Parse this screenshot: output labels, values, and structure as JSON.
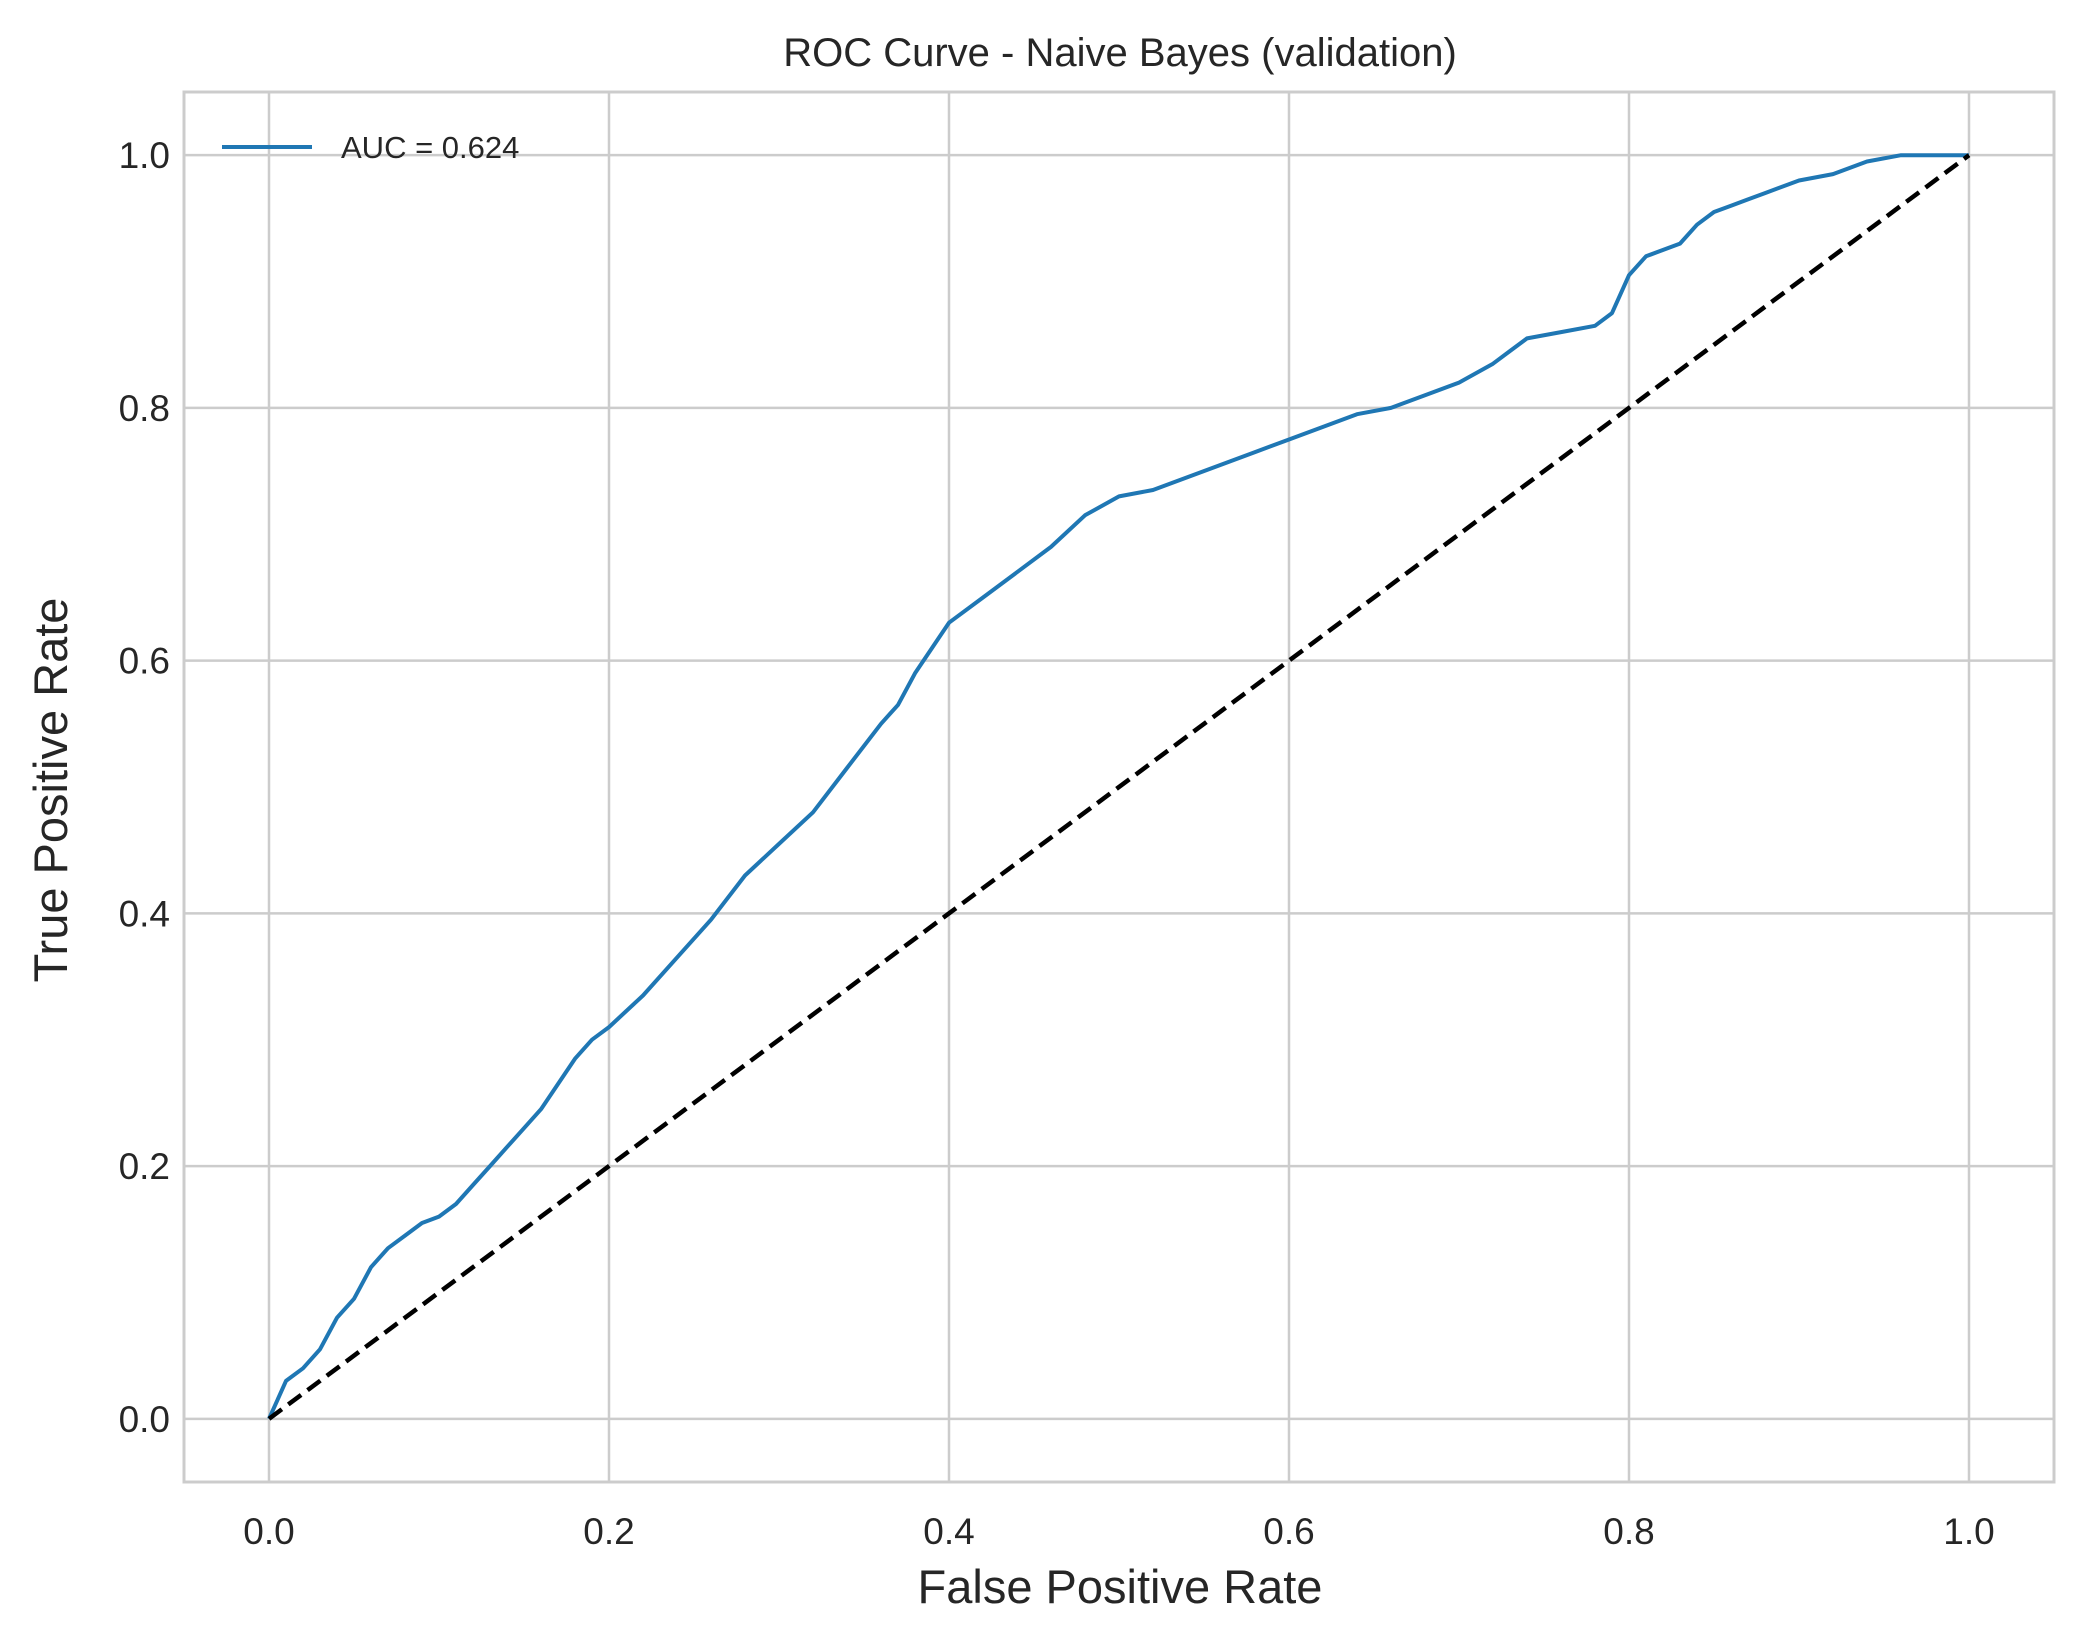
{
  "chart_data": {
    "type": "line",
    "title": "ROC Curve - Naive Bayes (validation)",
    "xlabel": "False Positive Rate",
    "ylabel": "True Positive Rate",
    "xlim": [
      -0.05,
      1.05
    ],
    "ylim": [
      -0.05,
      1.05
    ],
    "xticks": [
      "0.0",
      "0.2",
      "0.4",
      "0.6",
      "0.8",
      "1.0"
    ],
    "yticks": [
      "0.0",
      "0.2",
      "0.4",
      "0.6",
      "0.8",
      "1.0"
    ],
    "grid": true,
    "legend_position": "top-left",
    "series": [
      {
        "name": "AUC = 0.624",
        "color": "#1f77b4",
        "style": "solid",
        "x": [
          0.0,
          0.005,
          0.01,
          0.02,
          0.03,
          0.04,
          0.05,
          0.06,
          0.07,
          0.08,
          0.09,
          0.1,
          0.11,
          0.12,
          0.13,
          0.14,
          0.15,
          0.16,
          0.17,
          0.18,
          0.19,
          0.2,
          0.22,
          0.24,
          0.26,
          0.28,
          0.3,
          0.32,
          0.34,
          0.36,
          0.37,
          0.38,
          0.39,
          0.4,
          0.42,
          0.44,
          0.46,
          0.48,
          0.5,
          0.52,
          0.54,
          0.56,
          0.58,
          0.6,
          0.62,
          0.64,
          0.66,
          0.68,
          0.7,
          0.72,
          0.73,
          0.74,
          0.76,
          0.78,
          0.79,
          0.8,
          0.81,
          0.83,
          0.84,
          0.85,
          0.86,
          0.87,
          0.88,
          0.9,
          0.92,
          0.94,
          0.96,
          0.98,
          1.0
        ],
        "y": [
          0.0,
          0.015,
          0.03,
          0.04,
          0.055,
          0.08,
          0.095,
          0.12,
          0.135,
          0.145,
          0.155,
          0.16,
          0.17,
          0.185,
          0.2,
          0.215,
          0.23,
          0.245,
          0.265,
          0.285,
          0.3,
          0.31,
          0.335,
          0.365,
          0.395,
          0.43,
          0.455,
          0.48,
          0.515,
          0.55,
          0.565,
          0.59,
          0.61,
          0.63,
          0.65,
          0.67,
          0.69,
          0.715,
          0.73,
          0.735,
          0.745,
          0.755,
          0.765,
          0.775,
          0.785,
          0.795,
          0.8,
          0.81,
          0.82,
          0.835,
          0.845,
          0.855,
          0.86,
          0.865,
          0.875,
          0.905,
          0.92,
          0.93,
          0.945,
          0.955,
          0.96,
          0.965,
          0.97,
          0.98,
          0.985,
          0.995,
          1.0,
          1.0,
          1.0
        ]
      },
      {
        "name": "",
        "color": "#000000",
        "style": "dashed",
        "x": [
          0.0,
          1.0
        ],
        "y": [
          0.0,
          1.0
        ]
      }
    ]
  }
}
